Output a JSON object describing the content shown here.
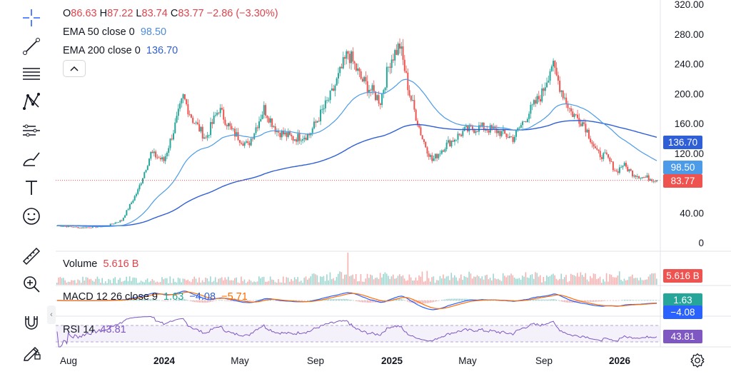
{
  "legend": {
    "ohlc": {
      "o_label": "O",
      "o": "86.63",
      "h_label": "H",
      "h": "87.22",
      "l_label": "L",
      "l": "83.74",
      "c_label": "C",
      "c": "83.77",
      "change": "−2.86 (−3.30%)"
    },
    "ema50": {
      "label": "EMA 50 close 0",
      "value": "98.50"
    },
    "ema200": {
      "label": "EMA 200 close 0",
      "value": "136.70"
    }
  },
  "panes": {
    "volume": {
      "label": "Volume",
      "value": "5.616 B",
      "tag": "5.616 B"
    },
    "macd": {
      "label": "MACD 12 26 close 9",
      "v1": "1.63",
      "v2": "−4.08",
      "v3": "−5.71",
      "tag_macd": "1.63",
      "tag_signal": "−4.08"
    },
    "rsi": {
      "label": "RSI 14",
      "value": "43.81",
      "tag": "43.81"
    }
  },
  "tags": {
    "ema200": "136.70",
    "ema50": "98.50",
    "last": "83.77"
  },
  "colors": {
    "up": "#26a69a",
    "down": "#ef5350",
    "ema50": "#4c9be8",
    "ema200": "#2f5fd6",
    "macd": "#2962ff",
    "signal": "#ff6d00",
    "rsi": "#7e57c2"
  },
  "icons": [
    "crosshair-icon",
    "trend-line-icon",
    "fib-lines-icon",
    "pattern-icon",
    "forecast-icon",
    "brush-icon",
    "text-icon",
    "emoji-icon",
    "ruler-icon",
    "zoom-icon",
    "magnet-icon",
    "lock-drawing-icon"
  ],
  "chart_data": {
    "type": "candlestick",
    "title": "",
    "y_axis": {
      "ticks": [
        "320.00",
        "280.00",
        "240.00",
        "200.00",
        "160.00",
        "120.00",
        "40.00",
        "0"
      ],
      "range": [
        0,
        320
      ]
    },
    "x_axis": {
      "ticks": [
        "Aug",
        "2024",
        "May",
        "Sep",
        "2025",
        "May",
        "Sep",
        "2026"
      ]
    },
    "grid": false,
    "series": [
      {
        "name": "EMA 50 close 0",
        "last": 98.5
      },
      {
        "name": "EMA 200 close 0",
        "last": 136.7
      }
    ],
    "last_close": 83.77,
    "approx_close_path": [
      [
        0,
        23
      ],
      [
        15,
        20
      ],
      [
        30,
        22
      ],
      [
        40,
        30
      ],
      [
        50,
        70
      ],
      [
        58,
        120
      ],
      [
        66,
        110
      ],
      [
        72,
        150
      ],
      [
        78,
        195
      ],
      [
        84,
        165
      ],
      [
        92,
        140
      ],
      [
        100,
        180
      ],
      [
        108,
        150
      ],
      [
        118,
        130
      ],
      [
        128,
        180
      ],
      [
        136,
        150
      ],
      [
        146,
        140
      ],
      [
        156,
        145
      ],
      [
        170,
        200
      ],
      [
        180,
        255
      ],
      [
        188,
        220
      ],
      [
        200,
        190
      ],
      [
        206,
        245
      ],
      [
        212,
        265
      ],
      [
        218,
        200
      ],
      [
        226,
        140
      ],
      [
        232,
        110
      ],
      [
        240,
        130
      ],
      [
        252,
        150
      ],
      [
        262,
        155
      ],
      [
        272,
        150
      ],
      [
        282,
        140
      ],
      [
        292,
        175
      ],
      [
        300,
        200
      ],
      [
        306,
        240
      ],
      [
        312,
        205
      ],
      [
        318,
        175
      ],
      [
        326,
        160
      ],
      [
        334,
        120
      ],
      [
        340,
        115
      ],
      [
        346,
        95
      ],
      [
        350,
        105
      ],
      [
        356,
        93
      ],
      [
        362,
        88
      ],
      [
        370,
        85
      ]
    ]
  }
}
